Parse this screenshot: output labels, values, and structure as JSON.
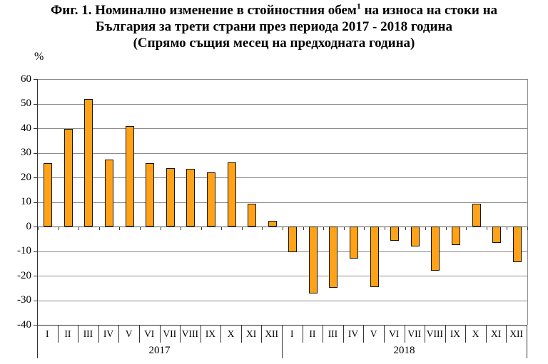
{
  "figure": {
    "title_line1_pre": "Фиг. 1. Номинално изменение в стойностния обем",
    "title_sup": "1",
    "title_line1_post": " на износа на стоки на",
    "title_line2": "България за трети страни през периода 2017 - 2018 година",
    "title_line3": "(Спрямо същия месец на предходната година)",
    "unit_label": "%"
  },
  "chart_data": {
    "type": "bar",
    "title": "Фиг. 1. Номинално изменение в стойностния обем(1) на износа на стоки на България за трети страни през периода 2017 - 2018 година (Спрямо същия месец на предходната година)",
    "xlabel": "",
    "ylabel": "%",
    "ylim": [
      -40,
      60
    ],
    "ytick_interval": 10,
    "ytick_labels": [
      "60",
      "50",
      "40",
      "30",
      "20",
      "10",
      "0",
      "-10",
      "-20",
      "-30",
      "-40"
    ],
    "grid": true,
    "legend_position": "none",
    "categories": [
      "I",
      "II",
      "III",
      "IV",
      "V",
      "VI",
      "VII",
      "VIII",
      "IX",
      "X",
      "XI",
      "XII"
    ],
    "series": [
      {
        "name": "2017",
        "values": [
          25.9,
          39.8,
          51.8,
          27.3,
          40.8,
          25.7,
          23.8,
          23.6,
          21.9,
          26.1,
          9.4,
          2.4
        ]
      },
      {
        "name": "2018",
        "values": [
          -10.4,
          -27.3,
          -24.8,
          -12.9,
          -24.5,
          -5.9,
          -8.0,
          -18.0,
          -7.4,
          9.3,
          -6.7,
          -14.6
        ]
      }
    ],
    "colors": {
      "bar_fill": "#FFA217",
      "bar_border": "#141414",
      "gridline": "#8C8C8C",
      "axis": "#333333",
      "text": "#000000",
      "background": "#FFFFFF"
    }
  }
}
